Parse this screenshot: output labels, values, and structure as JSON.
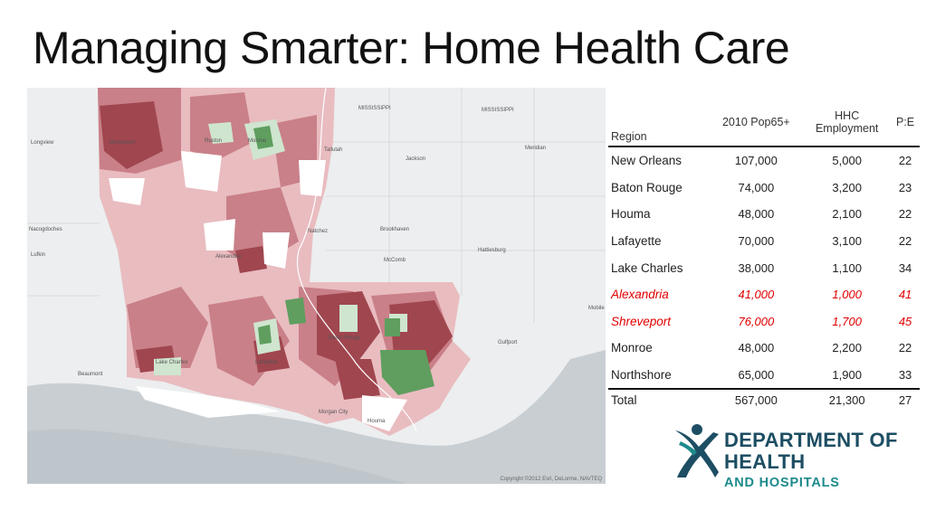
{
  "title": "Managing Smarter: Home Health Care",
  "map": {
    "copyright": "Copyright ©2012 Esri, DeLorme, NAVTEQ",
    "labels": [
      "MISSISSIPPI",
      "MISSISSIPPI",
      "Longview",
      "Shreveport",
      "Ruston",
      "Monroe",
      "Tallulah",
      "Jackson",
      "Meridian",
      "Nacogdoches",
      "Natchez",
      "Brookhaven",
      "Hattiesburg",
      "Lufkin",
      "Alexandria",
      "McComb",
      "Mobile",
      "Gulfport",
      "Lake Charles",
      "Lafayette",
      "Baton Rouge",
      "Beaumont",
      "Morgan City",
      "Houma"
    ]
  },
  "table": {
    "headers": {
      "region": "Region",
      "pop": "2010 Pop65+",
      "hhc_line1": "HHC",
      "hhc_line2": "Employment",
      "pe": "P:E"
    },
    "rows": [
      {
        "region": "New Orleans",
        "pop": "107,000",
        "hhc": "5,000",
        "pe": "22",
        "flag": false
      },
      {
        "region": "Baton Rouge",
        "pop": "74,000",
        "hhc": "3,200",
        "pe": "23",
        "flag": false
      },
      {
        "region": "Houma",
        "pop": "48,000",
        "hhc": "2,100",
        "pe": "22",
        "flag": false
      },
      {
        "region": "Lafayette",
        "pop": "70,000",
        "hhc": "3,100",
        "pe": "22",
        "flag": false
      },
      {
        "region": "Lake Charles",
        "pop": "38,000",
        "hhc": "1,100",
        "pe": "34",
        "flag": false
      },
      {
        "region": "Alexandria",
        "pop": "41,000",
        "hhc": "1,000",
        "pe": "41",
        "flag": true
      },
      {
        "region": "Shreveport",
        "pop": "76,000",
        "hhc": "1,700",
        "pe": "45",
        "flag": true
      },
      {
        "region": "Monroe",
        "pop": "48,000",
        "hhc": "2,200",
        "pe": "22",
        "flag": false
      },
      {
        "region": "Northshore",
        "pop": "65,000",
        "hhc": "1,900",
        "pe": "33",
        "flag": false
      }
    ],
    "total": {
      "region": "Total",
      "pop": "567,000",
      "hhc": "21,300",
      "pe": "27"
    }
  },
  "logo": {
    "line1": "DEPARTMENT OF",
    "line2": "HEALTH",
    "line3": "AND HOSPITALS"
  },
  "colors": {
    "flag": "#e00000",
    "logo_navy": "#1d4e63",
    "logo_teal": "#1d8a8c",
    "map_dark_red": "#a0464f",
    "map_mid_red": "#c98088",
    "map_light_red": "#e9bcc0",
    "map_green": "#5f9e5f",
    "map_light_green": "#cfe5cf",
    "water": "#c9cfd3"
  }
}
